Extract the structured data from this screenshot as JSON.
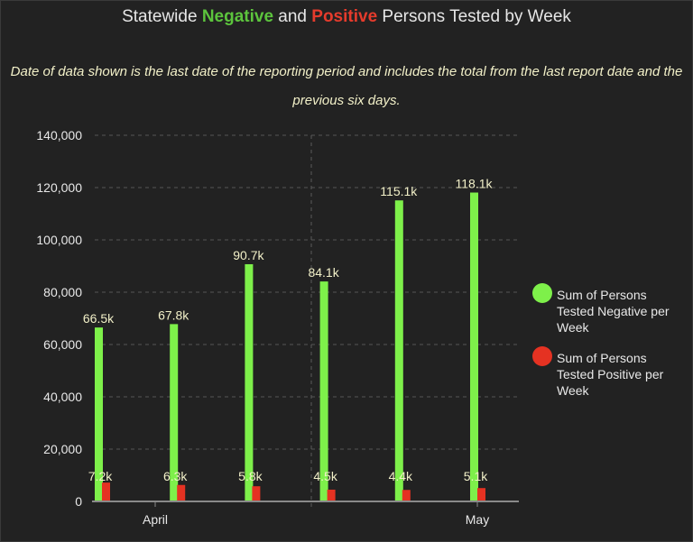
{
  "title": {
    "prefix": "Statewide ",
    "negative_word": "Negative",
    "middle": " and ",
    "positive_word": "Positive",
    "suffix": " Persons Tested by Week"
  },
  "subtitle": "Date of data shown is the last date of the reporting period and includes the total from the last report date and the previous six days.",
  "colors": {
    "negative": "#7ef04a",
    "positive": "#e53222",
    "background": "#222222"
  },
  "legend": [
    {
      "label": "Sum of Persons Tested Negative per Week",
      "color": "#7ef04a"
    },
    {
      "label": "Sum of Persons Tested Positive per Week",
      "color": "#e53222"
    }
  ],
  "chart_data": {
    "type": "bar",
    "title": "Statewide Negative and Positive Persons Tested by Week",
    "ylim": [
      0,
      140000
    ],
    "yticks": [
      0,
      20000,
      40000,
      60000,
      80000,
      100000,
      120000,
      140000
    ],
    "ytick_labels": [
      "0",
      "20,000",
      "40,000",
      "60,000",
      "80,000",
      "100,000",
      "120,000",
      "140,000"
    ],
    "x_axis_labels": [
      "April",
      "May"
    ],
    "weeks": 6,
    "series": [
      {
        "name": "Sum of Persons Tested Negative per Week",
        "values": [
          66500,
          67800,
          90700,
          84100,
          115100,
          118100
        ],
        "labels": [
          "66.5k",
          "67.8k",
          "90.7k",
          "84.1k",
          "115.1k",
          "118.1k"
        ]
      },
      {
        "name": "Sum of Persons Tested Positive per Week",
        "values": [
          7200,
          6300,
          5800,
          4500,
          4400,
          5100
        ],
        "labels": [
          "7.2k",
          "6.3k",
          "5.8k",
          "4.5k",
          "4.4k",
          "5.1k"
        ]
      }
    ]
  }
}
